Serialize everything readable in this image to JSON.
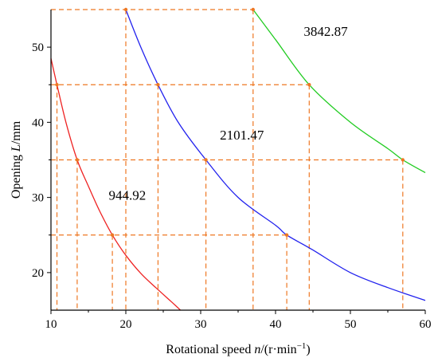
{
  "chart_data": {
    "type": "line",
    "title": "",
    "xlabel": {
      "prefix": "Rotational speed ",
      "var": "n",
      "suffix": "/(r·min",
      "sup": "−1",
      "close": ")"
    },
    "ylabel": {
      "prefix": "Opening ",
      "var": "L",
      "suffix": "/mm"
    },
    "xlim": [
      10,
      60
    ],
    "ylim": [
      15,
      55
    ],
    "xticks": [
      "10",
      "20",
      "30",
      "40",
      "50",
      "60"
    ],
    "yticks": [
      "20",
      "30",
      "40",
      "50"
    ],
    "grid": false,
    "series": [
      {
        "name": "944.92",
        "color": "#ee2222",
        "x": [
          10,
          10.8,
          12,
          13.5,
          15,
          16.5,
          18.2,
          20,
          22,
          24,
          26,
          27.3
        ],
        "y": [
          48.5,
          45,
          40,
          35,
          31.5,
          28.2,
          25,
          22.3,
          19.9,
          18,
          16.2,
          15
        ]
      },
      {
        "name": "2101.47",
        "color": "#2222ee",
        "x": [
          20,
          22,
          24.3,
          27,
          30.7,
          35,
          40,
          41.5,
          45,
          50,
          55,
          60
        ],
        "y": [
          55,
          50,
          45,
          40,
          35,
          30,
          26.3,
          25,
          23,
          20,
          18,
          16.3
        ]
      },
      {
        "name": "3842.87",
        "color": "#22cc22",
        "x": [
          37,
          40,
          44.5,
          50,
          55,
          57,
          60
        ],
        "y": [
          55,
          51,
          45,
          40,
          36.5,
          35,
          33.3
        ]
      }
    ],
    "reference_points": [
      {
        "x": 20,
        "y": 55
      },
      {
        "x": 37,
        "y": 55
      },
      {
        "x": 10.8,
        "y": 45
      },
      {
        "x": 24.3,
        "y": 45
      },
      {
        "x": 44.5,
        "y": 45
      },
      {
        "x": 13.5,
        "y": 35
      },
      {
        "x": 30.7,
        "y": 35
      },
      {
        "x": 57,
        "y": 35
      },
      {
        "x": 18.2,
        "y": 25
      },
      {
        "x": 41.5,
        "y": 25
      }
    ],
    "reference_line_color": "#ee7722",
    "annotations": [
      {
        "text": "944.92",
        "x": 20.2,
        "y": 29.7
      },
      {
        "text": "2101.47",
        "x": 35.5,
        "y": 37.7
      },
      {
        "text": "3842.87",
        "x": 46.7,
        "y": 51.5
      }
    ]
  }
}
